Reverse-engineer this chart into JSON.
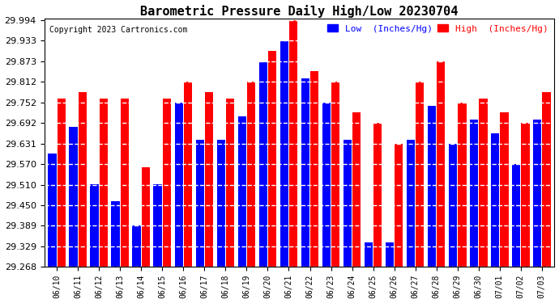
{
  "title": "Barometric Pressure Daily High/Low 20230704",
  "copyright": "Copyright 2023 Cartronics.com",
  "legend_low": "Low  (Inches/Hg)",
  "legend_high": "High  (Inches/Hg)",
  "dates": [
    "06/10",
    "06/11",
    "06/12",
    "06/13",
    "06/14",
    "06/15",
    "06/16",
    "06/17",
    "06/18",
    "06/19",
    "06/20",
    "06/21",
    "06/22",
    "06/23",
    "06/24",
    "06/25",
    "06/26",
    "06/27",
    "06/28",
    "06/29",
    "06/30",
    "07/01",
    "07/02",
    "07/03"
  ],
  "high_values": [
    29.762,
    29.782,
    29.762,
    29.762,
    29.561,
    29.762,
    29.812,
    29.782,
    29.762,
    29.812,
    29.903,
    29.994,
    29.843,
    29.812,
    29.722,
    29.692,
    29.631,
    29.812,
    29.873,
    29.752,
    29.762,
    29.722,
    29.692,
    29.782
  ],
  "low_values": [
    29.601,
    29.681,
    29.511,
    29.461,
    29.391,
    29.511,
    29.751,
    29.641,
    29.641,
    29.711,
    29.871,
    29.931,
    29.822,
    29.752,
    29.641,
    29.341,
    29.341,
    29.641,
    29.742,
    29.631,
    29.701,
    29.661,
    29.571,
    29.701
  ],
  "ylim_min": 29.268,
  "ylim_max": 29.994,
  "yticks": [
    29.268,
    29.329,
    29.389,
    29.45,
    29.51,
    29.57,
    29.631,
    29.692,
    29.752,
    29.812,
    29.873,
    29.933,
    29.994
  ],
  "bar_color_low": "#0000ff",
  "bar_color_high": "#ff0000",
  "bg_color": "#ffffff",
  "grid_color": "#aaaaaa",
  "title_fontsize": 11,
  "copyright_fontsize": 7,
  "legend_fontsize": 8,
  "tick_fontsize": 8
}
